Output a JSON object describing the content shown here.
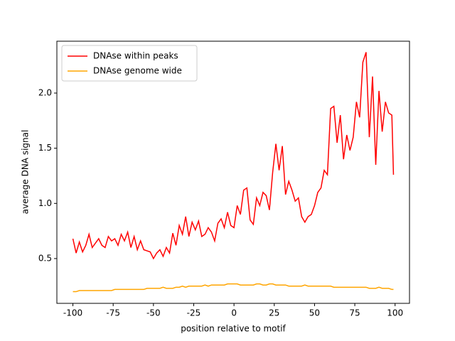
{
  "chart_data": {
    "type": "line",
    "x_label": "position relative to motif",
    "y_label": "average DNA signal",
    "x": [
      -100,
      -98,
      -96,
      -94,
      -92,
      -90,
      -88,
      -86,
      -84,
      -82,
      -80,
      -78,
      -76,
      -74,
      -72,
      -70,
      -68,
      -66,
      -64,
      -62,
      -60,
      -58,
      -56,
      -54,
      -52,
      -50,
      -48,
      -46,
      -44,
      -42,
      -40,
      -38,
      -36,
      -34,
      -32,
      -30,
      -28,
      -26,
      -24,
      -22,
      -20,
      -18,
      -16,
      -14,
      -12,
      -10,
      -8,
      -6,
      -4,
      -2,
      0,
      2,
      4,
      6,
      8,
      10,
      12,
      14,
      16,
      18,
      20,
      22,
      24,
      26,
      28,
      30,
      32,
      34,
      36,
      38,
      40,
      42,
      44,
      46,
      48,
      50,
      52,
      54,
      56,
      58,
      60,
      62,
      64,
      66,
      68,
      70,
      72,
      74,
      76,
      78,
      80,
      82,
      84,
      86,
      88,
      90,
      92,
      94,
      96,
      98,
      99
    ],
    "series": [
      {
        "name": "DNAse within peaks",
        "color": "#ff0000",
        "values": [
          0.68,
          0.55,
          0.65,
          0.56,
          0.62,
          0.72,
          0.6,
          0.64,
          0.68,
          0.62,
          0.6,
          0.7,
          0.66,
          0.68,
          0.62,
          0.72,
          0.66,
          0.74,
          0.6,
          0.7,
          0.58,
          0.66,
          0.58,
          0.57,
          0.56,
          0.5,
          0.55,
          0.58,
          0.52,
          0.6,
          0.55,
          0.73,
          0.62,
          0.8,
          0.72,
          0.88,
          0.7,
          0.83,
          0.76,
          0.84,
          0.7,
          0.72,
          0.78,
          0.74,
          0.66,
          0.82,
          0.86,
          0.78,
          0.92,
          0.8,
          0.78,
          0.98,
          0.9,
          1.12,
          1.14,
          0.85,
          0.81,
          1.05,
          0.98,
          1.1,
          1.07,
          0.94,
          1.28,
          1.54,
          1.3,
          1.52,
          1.08,
          1.2,
          1.12,
          1.02,
          1.05,
          0.88,
          0.83,
          0.88,
          0.9,
          0.98,
          1.1,
          1.14,
          1.3,
          1.26,
          1.86,
          1.88,
          1.55,
          1.8,
          1.4,
          1.62,
          1.48,
          1.6,
          1.92,
          1.78,
          2.28,
          2.37,
          1.6,
          2.15,
          1.35,
          2.02,
          1.65,
          1.92,
          1.82,
          1.8,
          1.26
        ]
      },
      {
        "name": "DNAse genome wide",
        "color": "#ffa500",
        "values": [
          0.2,
          0.2,
          0.21,
          0.21,
          0.21,
          0.21,
          0.21,
          0.21,
          0.21,
          0.21,
          0.21,
          0.21,
          0.21,
          0.22,
          0.22,
          0.22,
          0.22,
          0.22,
          0.22,
          0.22,
          0.22,
          0.22,
          0.22,
          0.23,
          0.23,
          0.23,
          0.23,
          0.23,
          0.24,
          0.23,
          0.23,
          0.23,
          0.24,
          0.24,
          0.25,
          0.24,
          0.25,
          0.25,
          0.25,
          0.25,
          0.25,
          0.26,
          0.25,
          0.26,
          0.26,
          0.26,
          0.26,
          0.26,
          0.27,
          0.27,
          0.27,
          0.27,
          0.26,
          0.26,
          0.26,
          0.26,
          0.26,
          0.27,
          0.27,
          0.26,
          0.26,
          0.27,
          0.27,
          0.26,
          0.26,
          0.26,
          0.26,
          0.25,
          0.25,
          0.25,
          0.25,
          0.25,
          0.26,
          0.25,
          0.25,
          0.25,
          0.25,
          0.25,
          0.25,
          0.25,
          0.25,
          0.24,
          0.24,
          0.24,
          0.24,
          0.24,
          0.24,
          0.24,
          0.24,
          0.24,
          0.24,
          0.24,
          0.23,
          0.23,
          0.23,
          0.24,
          0.23,
          0.23,
          0.23,
          0.22,
          0.22
        ]
      }
    ],
    "xlim": [
      -109.95,
      108.95
    ],
    "ylim": [
      0.094,
      2.47
    ],
    "xticks": [
      -100,
      -75,
      -50,
      -25,
      0,
      25,
      50,
      75,
      100
    ],
    "yticks": [
      0.5,
      {
        "value": 1,
        "label": "1.0"
      },
      1.5,
      {
        "value": 2,
        "label": "2.0"
      }
    ],
    "legend": "upper left",
    "grid": false
  }
}
